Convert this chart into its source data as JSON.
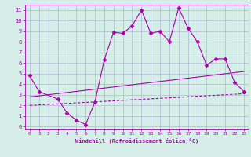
{
  "xlabel": "Windchill (Refroidissement éolien,°C)",
  "background_color": "#d6eee8",
  "grid_color": "#b0b8d0",
  "line_color": "#aa00aa",
  "xlim": [
    -0.5,
    23.5
  ],
  "ylim": [
    -0.2,
    11.5
  ],
  "xticks": [
    0,
    1,
    2,
    3,
    4,
    5,
    6,
    7,
    8,
    9,
    10,
    11,
    12,
    13,
    14,
    15,
    16,
    17,
    18,
    19,
    20,
    21,
    22,
    23
  ],
  "yticks": [
    0,
    1,
    2,
    3,
    4,
    5,
    6,
    7,
    8,
    9,
    10,
    11
  ],
  "line1_x": [
    0,
    1,
    3,
    4,
    5,
    6,
    7,
    8,
    9,
    10,
    11,
    12,
    13,
    14,
    15,
    16,
    17,
    18,
    19,
    20,
    21,
    22,
    23
  ],
  "line1_y": [
    4.8,
    3.3,
    2.6,
    1.3,
    0.6,
    0.2,
    2.3,
    6.3,
    8.9,
    8.8,
    9.5,
    11.0,
    8.8,
    9.0,
    8.0,
    11.2,
    9.3,
    8.0,
    5.8,
    6.4,
    6.4,
    4.2,
    3.3
  ],
  "line2_x": [
    0,
    23
  ],
  "line2_y": [
    2.8,
    5.2
  ],
  "line3_x": [
    0,
    23
  ],
  "line3_y": [
    2.0,
    3.1
  ],
  "marker": "D",
  "markersize": 2.5,
  "linewidth": 0.8
}
